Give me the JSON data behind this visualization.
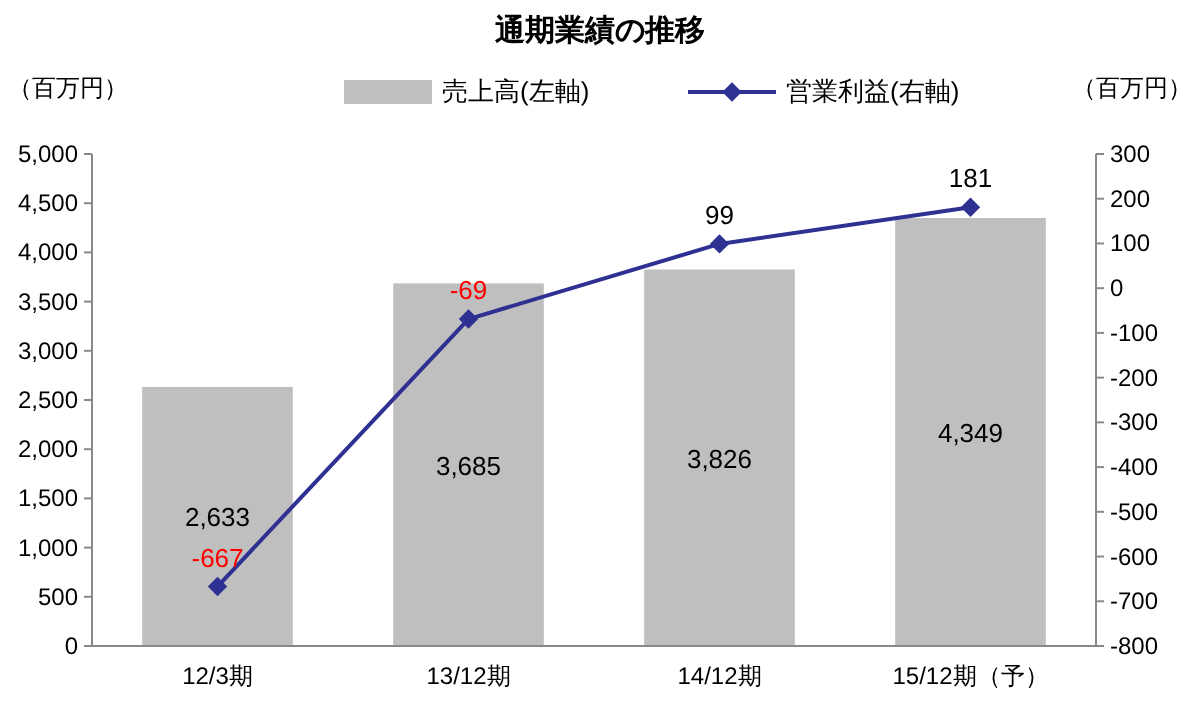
{
  "chart_data": {
    "type": "bar",
    "title": "通期業績の推移",
    "ylabel": "（百万円）",
    "y2label": "（百万円）",
    "categories": [
      "12/3期",
      "13/12期",
      "14/12期",
      "15/12期（予）"
    ],
    "series": [
      {
        "name": "売上高(左軸)",
        "color": "#bfbfbf",
        "values": [
          2633,
          3685,
          3826,
          4349
        ],
        "value_labels": [
          "2,633",
          "3,685",
          "3,826",
          "4,349"
        ]
      },
      {
        "name": "営業利益(右軸)",
        "type": "line",
        "axis": "y2",
        "color": "#2e3192",
        "marker": "diamond",
        "values": [
          -667,
          -69,
          99,
          181
        ],
        "value_labels": [
          "-667",
          "-69",
          "99",
          "181"
        ]
      }
    ],
    "ylim": [
      0,
      5000
    ],
    "yticks": [
      {
        "value": 0,
        "label": "0"
      },
      {
        "value": 500,
        "label": "500"
      },
      {
        "value": 1000,
        "label": "1,000"
      },
      {
        "value": 1500,
        "label": "1,500"
      },
      {
        "value": 2000,
        "label": "2,000"
      },
      {
        "value": 2500,
        "label": "2,500"
      },
      {
        "value": 3000,
        "label": "3,000"
      },
      {
        "value": 3500,
        "label": "3,500"
      },
      {
        "value": 4000,
        "label": "4,000"
      },
      {
        "value": 4500,
        "label": "4,500"
      },
      {
        "value": 5000,
        "label": "5,000"
      }
    ],
    "y2lim": [
      -800,
      300
    ],
    "y2ticks": [
      -800,
      -700,
      -600,
      -500,
      -400,
      -300,
      -200,
      -100,
      0,
      100,
      200,
      300
    ],
    "legend": "top"
  }
}
